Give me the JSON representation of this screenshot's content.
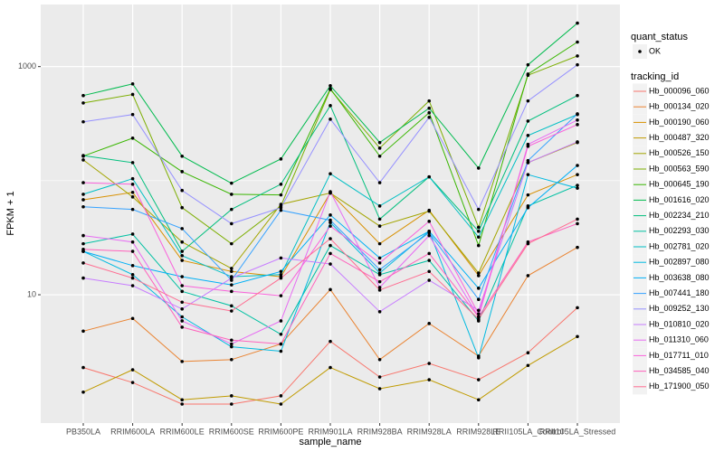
{
  "chart_data": {
    "type": "line",
    "x_label": "sample_name",
    "y_label": "FPKM + 1",
    "categories": [
      "PB350LA",
      "RRIM600LA",
      "RRIM600LE",
      "RRIM600SE",
      "RRIM600PE",
      "RRIM901LA",
      "RRIM928BA",
      "RRIM928LA",
      "RRIM928LE",
      "RRII105LA_Control",
      "RRII105LA_Stressed"
    ],
    "log_y": true,
    "ylim": [
      0.75,
      3500
    ],
    "yticks": [
      10,
      1000
    ],
    "minor_yticks": [
      100
    ],
    "grid": true,
    "point_color": "#000000",
    "point_legend": {
      "title": "quant_status",
      "labels": [
        "OK"
      ]
    },
    "legend_title": "tracking_id",
    "legend_position": "right",
    "series": [
      {
        "name": "Hb_000096_060",
        "color": "#F8766D",
        "values": [
          2.3,
          1.7,
          1.1,
          1.1,
          1.3,
          3.9,
          1.9,
          2.5,
          1.8,
          3.1,
          7.7
        ]
      },
      {
        "name": "Hb_000134_020",
        "color": "#EA8331",
        "values": [
          4.8,
          6.2,
          2.6,
          2.7,
          3.7,
          11.1,
          2.7,
          5.6,
          2.9,
          14.7,
          26
        ]
      },
      {
        "name": "Hb_000190_060",
        "color": "#D89000",
        "values": [
          68,
          79,
          20,
          16,
          14.4,
          78,
          28,
          55,
          14.7,
          75,
          113
        ]
      },
      {
        "name": "Hb_000487_320",
        "color": "#C09B00",
        "values": [
          1.4,
          2.2,
          1.2,
          1.3,
          1.1,
          2.3,
          1.5,
          1.8,
          1.2,
          2.4,
          4.3
        ]
      },
      {
        "name": "Hb_000526_150",
        "color": "#A3A500",
        "values": [
          152,
          72,
          29,
          17,
          62,
          78,
          40,
          54,
          15.5,
          144,
          216
        ]
      },
      {
        "name": "Hb_000563_590",
        "color": "#7CAE00",
        "values": [
          480,
          570,
          58,
          28,
          60,
          630,
          193,
          500,
          39,
          840,
          1240
        ]
      },
      {
        "name": "Hb_000645_190",
        "color": "#39B600",
        "values": [
          164,
          236,
          120,
          76,
          75,
          640,
          164,
          394,
          27,
          860,
          1640
        ]
      },
      {
        "name": "Hb_001616_020",
        "color": "#00BB4E",
        "values": [
          557,
          705,
          164,
          95,
          155,
          680,
          216,
          432,
          129,
          1037,
          2404
        ]
      },
      {
        "name": "Hb_002234_210",
        "color": "#00BF7D",
        "values": [
          166,
          144,
          24,
          56,
          93,
          455,
          46,
          108,
          36,
          333,
          557
        ]
      },
      {
        "name": "Hb_002293_030",
        "color": "#00C1A3",
        "values": [
          28,
          34,
          10.7,
          8,
          4.5,
          27,
          15,
          20,
          5.9,
          60,
          91
        ]
      },
      {
        "name": "Hb_002781_020",
        "color": "#00BFC4",
        "values": [
          76,
          104,
          22,
          14.4,
          15,
          115,
          60,
          108,
          32,
          249,
          380
        ]
      },
      {
        "name": "Hb_002897_080",
        "color": "#00BAE0",
        "values": [
          24,
          15,
          6.4,
          3.5,
          3.2,
          43,
          15.5,
          36,
          2.8,
          113,
          86
        ]
      },
      {
        "name": "Hb_003638_080",
        "color": "#00B0F6",
        "values": [
          24,
          18,
          14.4,
          12.2,
          16,
          50,
          21,
          36,
          11.4,
          58,
          136
        ]
      },
      {
        "name": "Hb_007441_180",
        "color": "#35A2FF",
        "values": [
          59,
          56,
          38,
          13.4,
          55,
          45,
          16.6,
          35,
          9.1,
          150,
          385
        ]
      },
      {
        "name": "Hb_009252_130",
        "color": "#9590FF",
        "values": [
          328,
          380,
          82,
          42,
          58,
          346,
          96,
          359,
          56,
          500,
          1037
        ]
      },
      {
        "name": "Hb_010810_020",
        "color": "#C77CFF",
        "values": [
          14,
          12,
          7.5,
          14,
          21,
          18.6,
          7.1,
          13.4,
          7.3,
          144,
          219
        ]
      },
      {
        "name": "Hb_011310_060",
        "color": "#E76BF3",
        "values": [
          33,
          29,
          5.9,
          3.7,
          5.9,
          80,
          11.6,
          33,
          6.4,
          208,
          340
        ]
      },
      {
        "name": "Hb_017711_010",
        "color": "#FA62DB",
        "values": [
          96,
          93,
          12,
          10.7,
          9.8,
          40,
          19,
          44,
          6.8,
          200,
          310
        ]
      },
      {
        "name": "Hb_034585_040",
        "color": "#FF62BC",
        "values": [
          25,
          24,
          5.2,
          4,
          3.7,
          23,
          13,
          23,
          6.4,
          29,
          42
        ]
      },
      {
        "name": "Hb_171900_050",
        "color": "#FF6C91",
        "values": [
          19,
          14,
          8.6,
          7.2,
          14,
          31,
          11,
          16,
          6.1,
          28,
          46
        ]
      }
    ]
  }
}
